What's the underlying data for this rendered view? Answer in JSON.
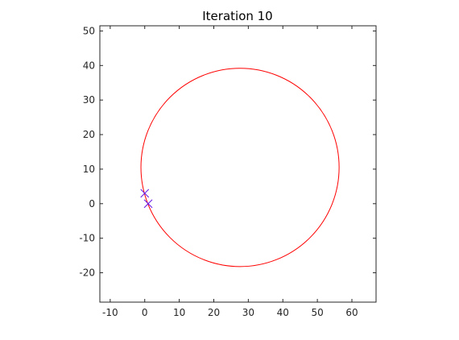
{
  "chart_data": {
    "type": "scatter",
    "title": "Iteration 10",
    "xlabel": "",
    "ylabel": "",
    "xlim": [
      -13,
      67
    ],
    "ylim": [
      -28.5,
      51.5
    ],
    "xticks": [
      -10,
      0,
      10,
      20,
      30,
      40,
      50,
      60
    ],
    "yticks": [
      -20,
      -10,
      0,
      10,
      20,
      30,
      40,
      50
    ],
    "xtick_labels": [
      "-10",
      "0",
      "10",
      "20",
      "30",
      "40",
      "50",
      "60"
    ],
    "ytick_labels": [
      "-20",
      "-10",
      "0",
      "10",
      "20",
      "30",
      "40",
      "50"
    ],
    "grid": false,
    "series": [
      {
        "marker": "x",
        "color": "#0000ff",
        "points": [
          [
            0,
            3
          ],
          [
            1,
            0
          ]
        ]
      },
      {
        "marker": "x",
        "color": "#cc33cc",
        "points": [
          [
            0,
            3
          ],
          [
            1,
            0
          ]
        ]
      }
    ],
    "circle": {
      "color": "#ff0000",
      "center": [
        27.6,
        10.5
      ],
      "radius": 28.7
    }
  }
}
